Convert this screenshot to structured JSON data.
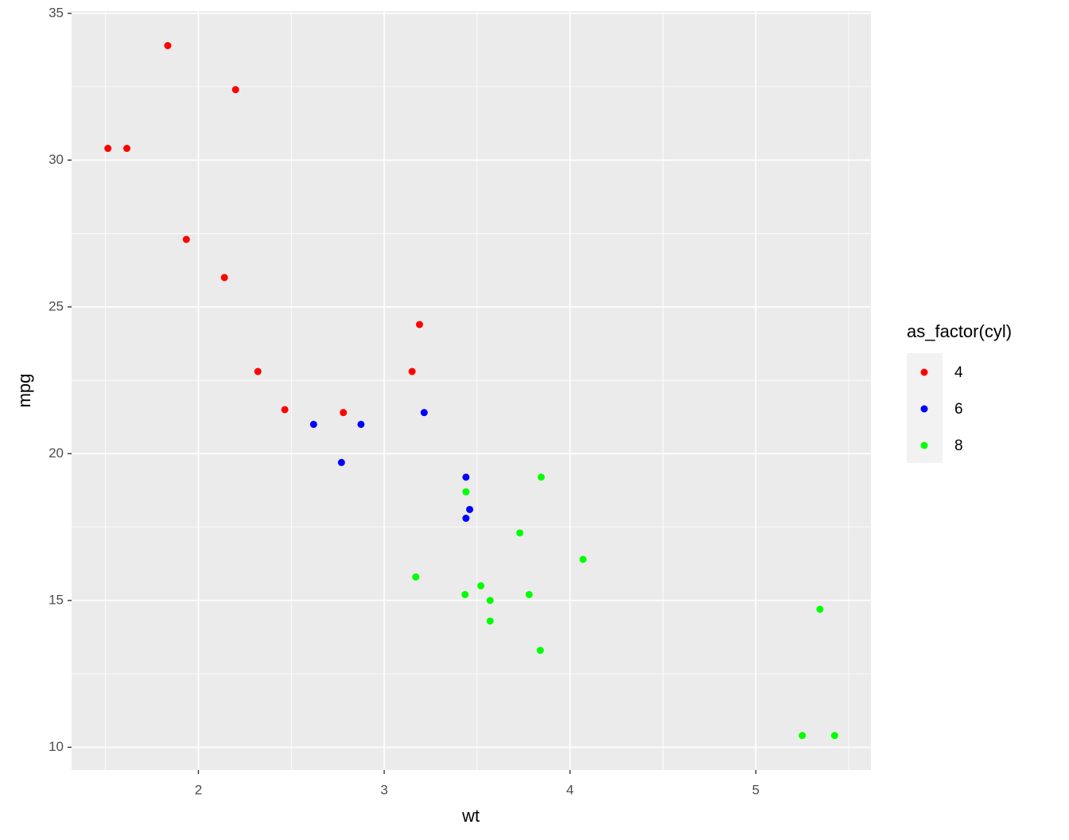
{
  "chart_data": {
    "type": "scatter",
    "x_label": "wt",
    "y_label": "mpg",
    "legend_title": "as_factor(cyl)",
    "legend": "right",
    "grid": true,
    "xlim": [
      1.31745,
      5.61955
    ],
    "ylim": [
      9.225,
      35.075
    ],
    "xticks": [
      2,
      3,
      4,
      5
    ],
    "yticks": [
      10,
      15,
      20,
      25,
      30,
      35
    ],
    "series": [
      {
        "name": "4",
        "color": "#ff0000",
        "x": [
          2.32,
          3.19,
          3.15,
          2.2,
          1.615,
          1.835,
          2.465,
          1.935,
          2.14,
          1.513,
          2.78
        ],
        "values": [
          22.8,
          24.4,
          22.8,
          32.4,
          30.4,
          33.9,
          21.5,
          27.3,
          26.0,
          30.4,
          21.4
        ]
      },
      {
        "name": "6",
        "color": "#0000ff",
        "x": [
          2.62,
          2.875,
          3.215,
          3.46,
          3.44,
          3.44,
          2.77
        ],
        "values": [
          21.0,
          21.0,
          21.4,
          18.1,
          19.2,
          17.8,
          19.7
        ]
      },
      {
        "name": "8",
        "color": "#00ff00",
        "x": [
          3.44,
          3.57,
          4.07,
          3.73,
          3.78,
          5.25,
          5.424,
          5.345,
          3.52,
          3.435,
          3.84,
          3.845,
          3.17,
          3.57
        ],
        "values": [
          18.7,
          14.3,
          16.4,
          17.3,
          15.2,
          10.4,
          10.4,
          14.7,
          15.5,
          15.2,
          13.3,
          19.2,
          15.8,
          15.0
        ]
      }
    ]
  }
}
